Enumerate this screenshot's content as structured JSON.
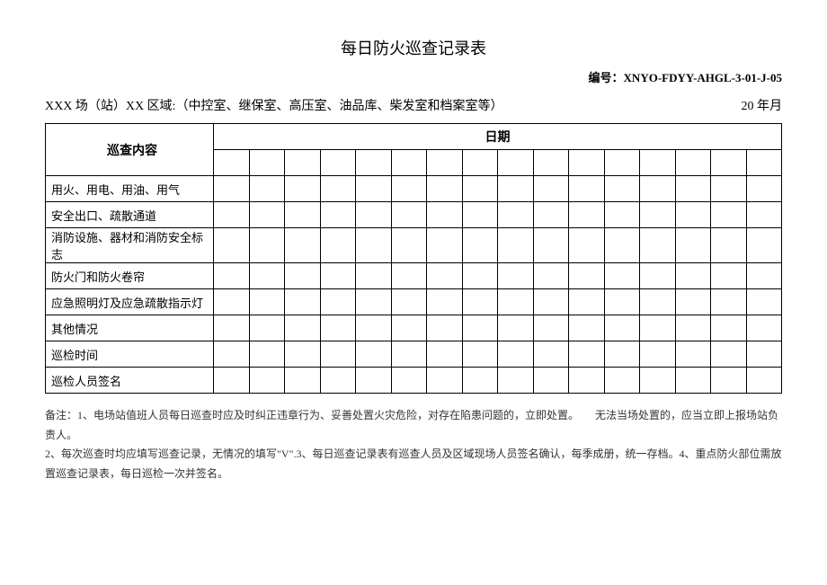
{
  "title": "每日防火巡查记录表",
  "doc_number_label": "编号：XNYO-FDYY-AHGL-3-01-J-05",
  "header": {
    "left": "XXX 场（站）XX 区域:（中控室、继保室、高压室、油品库、柴发室和档案室等）",
    "right": "20 年月"
  },
  "table": {
    "label_header": "巡查内容",
    "date_header": "日期",
    "num_date_cols": 16,
    "rows": [
      "用火、用电、用油、用气",
      "安全出口、疏散通道",
      "消防设施、器材和消防安全标志",
      "防火门和防火卷帘",
      "应急照明灯及应急疏散指示灯",
      "其他情况",
      "巡检时间",
      "巡检人员签名"
    ]
  },
  "notes": {
    "line1": "备注：1、电场站值班人员每日巡查时应及时纠正违章行为、妥善处置火灾危险，对存在陷患问题的，立即处置。　　无法当场处置的，应当立即上报场站负责人。",
    "line2": "2、每次巡查时均应填写巡查记录，无情况的填写\"V\".3、每日巡查记录表有巡查人员及区域现场人员签名确认，每季成册，统一存档。4、重点防火部位需放置巡查记录表，每日巡检一次并签名。"
  }
}
